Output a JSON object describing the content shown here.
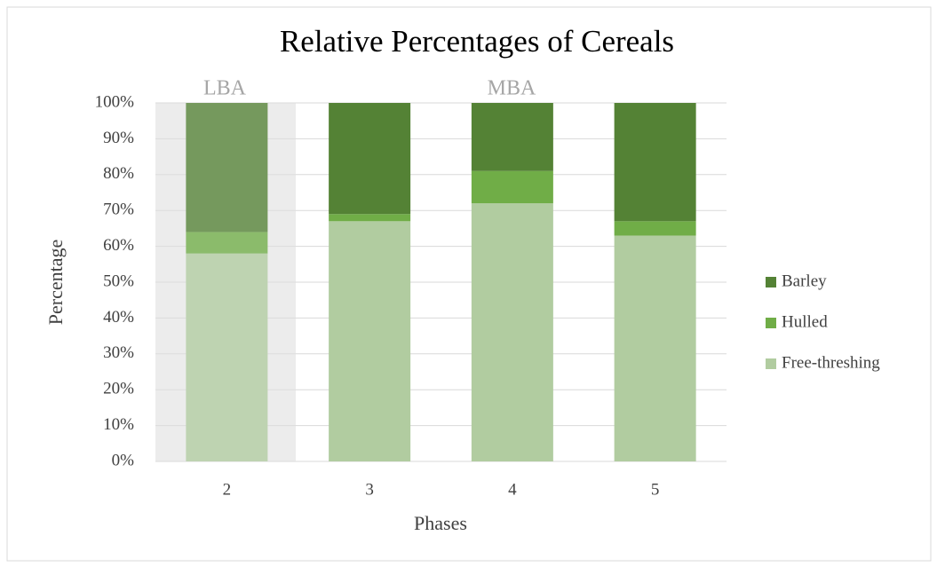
{
  "chart_data": {
    "type": "stacked_bar",
    "title": "Relative Percentages of Cereals",
    "x_label": "Phases",
    "y_label": "Percentage",
    "annotations": [
      "LBA",
      "MBA"
    ],
    "categories": [
      "2",
      "3",
      "4",
      "5"
    ],
    "series": [
      {
        "name": "Free-threshing",
        "color": "#b1cca0",
        "values": [
          58,
          67,
          72,
          63
        ]
      },
      {
        "name": "Hulled",
        "color": "#70ad47",
        "values": [
          6,
          2,
          9,
          4
        ]
      },
      {
        "name": "Barley",
        "color": "#548235",
        "values": [
          36,
          31,
          19,
          33
        ]
      }
    ],
    "ylim": [
      0,
      100
    ],
    "yticks": [
      {
        "value": 0,
        "label": "0%"
      },
      {
        "value": 10,
        "label": "10%"
      },
      {
        "value": 20,
        "label": "20%"
      },
      {
        "value": 30,
        "label": "30%"
      },
      {
        "value": 40,
        "label": "40%"
      },
      {
        "value": 50,
        "label": "50%"
      },
      {
        "value": 60,
        "label": "60%"
      },
      {
        "value": 70,
        "label": "70%"
      },
      {
        "value": 80,
        "label": "80%"
      },
      {
        "value": 90,
        "label": "90%"
      },
      {
        "value": 100,
        "label": "100%"
      }
    ],
    "grid": true,
    "legend": "right"
  }
}
